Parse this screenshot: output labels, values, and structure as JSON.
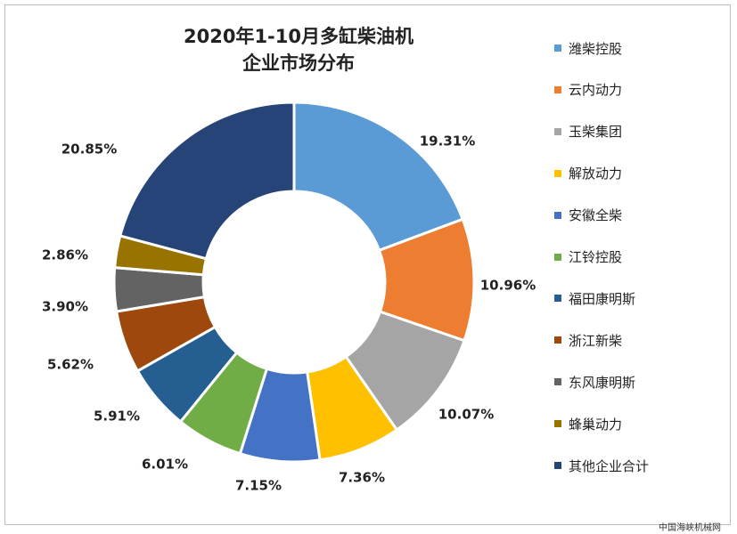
{
  "chart_data": {
    "type": "pie",
    "donut": true,
    "title_line1": "2020年1-10月多缸柴油机",
    "title_line2": "企业市场分布",
    "legend_position": "right",
    "categories": [
      "潍柴控股",
      "云内动力",
      "玉柴集团",
      "解放动力",
      "安徽全柴",
      "江铃控股",
      "福田康明斯",
      "浙江新柴",
      "东风康明斯",
      "蜂巢动力",
      "其他企业合计"
    ],
    "values": [
      19.31,
      10.96,
      10.07,
      7.36,
      7.15,
      6.01,
      5.91,
      5.62,
      3.9,
      2.86,
      20.85
    ],
    "labels": [
      "19.31%",
      "10.96%",
      "10.07%",
      "7.36%",
      "7.15%",
      "6.01%",
      "5.91%",
      "5.62%",
      "3.90%",
      "2.86%",
      "20.85%"
    ],
    "colors": [
      "#5B9BD5",
      "#ED7D31",
      "#A5A5A5",
      "#FFC000",
      "#4472C4",
      "#70AD47",
      "#255E91",
      "#9E480E",
      "#636363",
      "#997300",
      "#264478"
    ]
  },
  "watermark": "中国海峡机械网"
}
